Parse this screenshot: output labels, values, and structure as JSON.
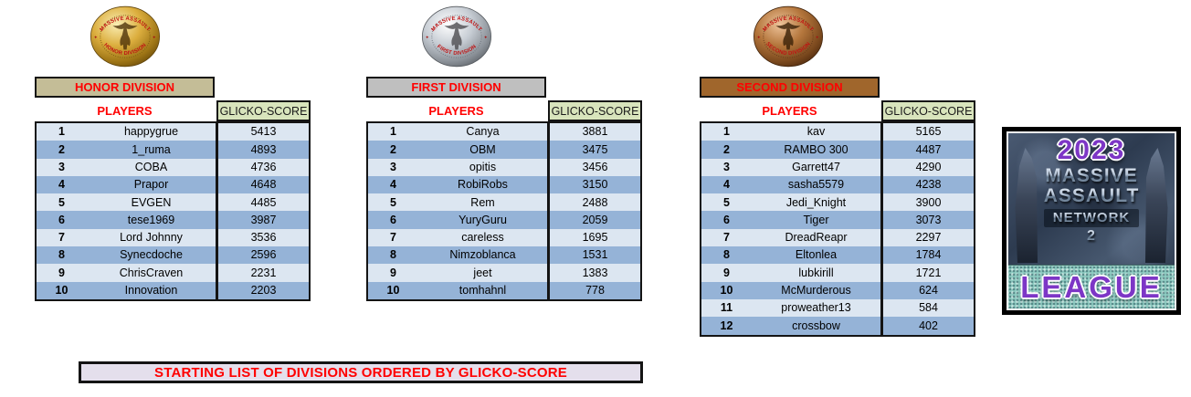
{
  "colors": {
    "accent_red": "#FF0000",
    "row_light": "#DCE6F1",
    "row_dark": "#95B3D7",
    "score_header_bg": "#D8E4BC",
    "banner_bg": "#E4DFEC",
    "logo_purple": "#7D36C6",
    "honor_header_bg": "#C4BD97",
    "first_header_bg": "#BFBFBF",
    "second_header_bg": "#A0662C"
  },
  "medal_top_text": "MASSIVE ASSAULT",
  "medal_ornament": "✦",
  "divisions": [
    {
      "title": "HONOR DIVISION",
      "medal_text": "HONOR DIVISION",
      "players_label": "PLAYERS",
      "score_label": "GLICKO-SCORE",
      "header_bg": "#C4BD97",
      "rows": [
        {
          "rank": "1",
          "player": "happygrue",
          "score": "5413"
        },
        {
          "rank": "2",
          "player": "1_ruma",
          "score": "4893"
        },
        {
          "rank": "3",
          "player": "COBA",
          "score": "4736"
        },
        {
          "rank": "4",
          "player": "Prapor",
          "score": "4648"
        },
        {
          "rank": "5",
          "player": "EVGEN",
          "score": "4485"
        },
        {
          "rank": "6",
          "player": "tese1969",
          "score": "3987"
        },
        {
          "rank": "7",
          "player": "Lord Johnny",
          "score": "3536"
        },
        {
          "rank": "8",
          "player": "Synecdoche",
          "score": "2596"
        },
        {
          "rank": "9",
          "player": "ChrisCraven",
          "score": "2231"
        },
        {
          "rank": "10",
          "player": "Innovation",
          "score": "2203"
        }
      ]
    },
    {
      "title": "FIRST DIVISION",
      "medal_text": "FIRST DIVISION",
      "players_label": "PLAYERS",
      "score_label": "GLICKO-SCORE",
      "header_bg": "#BFBFBF",
      "rows": [
        {
          "rank": "1",
          "player": "Canya",
          "score": "3881"
        },
        {
          "rank": "2",
          "player": "OBM",
          "score": "3475"
        },
        {
          "rank": "3",
          "player": "opitis",
          "score": "3456"
        },
        {
          "rank": "4",
          "player": "RobiRobs",
          "score": "3150"
        },
        {
          "rank": "5",
          "player": "Rem",
          "score": "2488"
        },
        {
          "rank": "6",
          "player": "YuryGuru",
          "score": "2059"
        },
        {
          "rank": "7",
          "player": "careless",
          "score": "1695"
        },
        {
          "rank": "8",
          "player": "Nimzoblanca",
          "score": "1531"
        },
        {
          "rank": "9",
          "player": "jeet",
          "score": "1383"
        },
        {
          "rank": "10",
          "player": "tomhahnl",
          "score": "778"
        }
      ]
    },
    {
      "title": "SECOND DIVISION",
      "medal_text": "SECOND DIVISION",
      "players_label": "PLAYERS",
      "score_label": "GLICKO-SCORE",
      "header_bg": "#A0662C",
      "rows": [
        {
          "rank": "1",
          "player": "kav",
          "score": "5165"
        },
        {
          "rank": "2",
          "player": "RAMBO 300",
          "score": "4487"
        },
        {
          "rank": "3",
          "player": "Garrett47",
          "score": "4290"
        },
        {
          "rank": "4",
          "player": "sasha5579",
          "score": "4238"
        },
        {
          "rank": "5",
          "player": "Jedi_Knight",
          "score": "3900"
        },
        {
          "rank": "6",
          "player": "Tiger",
          "score": "3073"
        },
        {
          "rank": "7",
          "player": "DreadReapr",
          "score": "2297"
        },
        {
          "rank": "8",
          "player": "Eltonlea",
          "score": "1784"
        },
        {
          "rank": "9",
          "player": "lubkirill",
          "score": "1721"
        },
        {
          "rank": "10",
          "player": "McMurderous",
          "score": "624"
        },
        {
          "rank": "11",
          "player": "proweather13",
          "score": "584"
        },
        {
          "rank": "12",
          "player": "crossbow",
          "score": "402"
        }
      ]
    }
  ],
  "banner": {
    "text": "STARTING LIST OF DIVISIONS ORDERED BY GLICKO-SCORE"
  },
  "logo": {
    "year": "2023",
    "line1": "MASSIVE",
    "line2": "ASSAULT",
    "line3": "NETWORK",
    "number": "2",
    "league": "LEAGUE"
  }
}
